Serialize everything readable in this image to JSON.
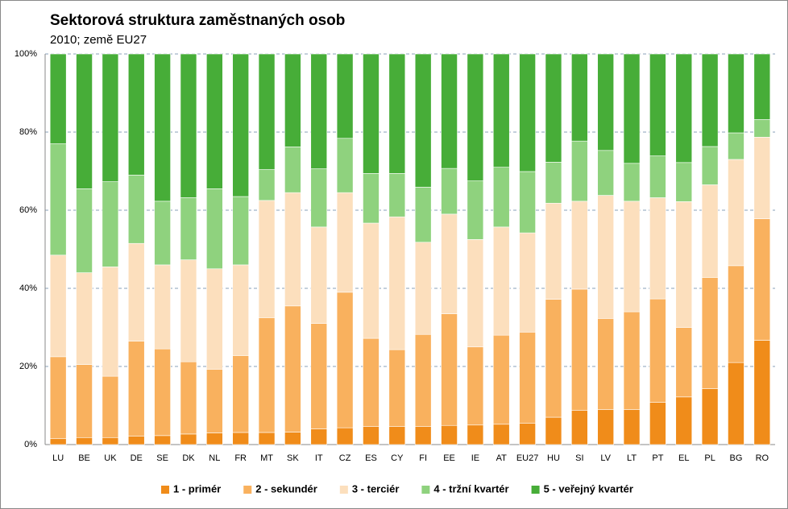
{
  "chart_data": {
    "type": "stacked_bar_100",
    "title": "Sektorová struktura zaměstnaných osob",
    "subtitle": "2010; země EU27",
    "categories": [
      "LU",
      "BE",
      "UK",
      "DE",
      "SE",
      "DK",
      "NL",
      "FR",
      "MT",
      "SK",
      "IT",
      "CZ",
      "ES",
      "CY",
      "FI",
      "EE",
      "IE",
      "AT",
      "EU27",
      "HU",
      "SI",
      "LV",
      "LT",
      "PT",
      "EL",
      "PL",
      "BG",
      "RO"
    ],
    "series": [
      {
        "name": "1 - primér",
        "color": "#f08c1a",
        "values": [
          1.5,
          1.8,
          1.8,
          2.2,
          2.3,
          2.7,
          3,
          3.1,
          3.1,
          3.2,
          4,
          4.3,
          4.6,
          4.6,
          4.6,
          4.9,
          5,
          5.2,
          5.5,
          7,
          8.8,
          9,
          9,
          10.8,
          12.2,
          14.3,
          21,
          26.7
        ]
      },
      {
        "name": "2 - sekundér",
        "color": "#f9b15e",
        "values": [
          21,
          18.7,
          15.7,
          24.3,
          22.2,
          18.5,
          16.3,
          19.7,
          29.4,
          32.3,
          27,
          34.7,
          22.6,
          19.7,
          23.6,
          28.6,
          20,
          22.8,
          23.3,
          30.2,
          31,
          23.3,
          25,
          26.5,
          17.8,
          28.5,
          24.8,
          31.1
        ]
      },
      {
        "name": "3 - terciér",
        "color": "#fcdfbd",
        "values": [
          26,
          23.5,
          28,
          25,
          21.5,
          26.1,
          25.7,
          23.2,
          30,
          29,
          24.7,
          25.5,
          29.5,
          34,
          23.6,
          25.5,
          27.5,
          27.7,
          25.4,
          24.6,
          22.5,
          31.5,
          28.3,
          25.9,
          32.2,
          23.7,
          27.2,
          20.9
        ]
      },
      {
        "name": "4 - tržní kvartér",
        "color": "#8fd27e",
        "values": [
          28.5,
          21.5,
          21.8,
          17.5,
          16.3,
          15.9,
          20.5,
          17.5,
          7.9,
          11.7,
          14.9,
          13.9,
          12.7,
          11.1,
          14.1,
          11.7,
          15,
          15.3,
          15.7,
          10.5,
          15.4,
          11.5,
          9.7,
          10.7,
          10,
          9.8,
          6.8,
          4.5
        ]
      },
      {
        "name": "5 - veřejný kvartér",
        "color": "#47ad38",
        "values": [
          23,
          34.5,
          32.7,
          31,
          37.7,
          36.8,
          34.5,
          36.5,
          29.6,
          23.8,
          29.4,
          21.6,
          30.6,
          30.6,
          34.1,
          29.3,
          32.5,
          29,
          30.1,
          27.7,
          22.3,
          24.7,
          28,
          26.1,
          27.8,
          23.7,
          20.2,
          16.8
        ]
      }
    ],
    "ylim": [
      0,
      100
    ],
    "yticks": [
      {
        "value": 0,
        "label": "0%"
      },
      {
        "value": 20,
        "label": "20%"
      },
      {
        "value": 40,
        "label": "40%"
      },
      {
        "value": 60,
        "label": "60%"
      },
      {
        "value": 80,
        "label": "80%"
      },
      {
        "value": 100,
        "label": "100%"
      }
    ],
    "grid": true,
    "legend": "bottom"
  }
}
